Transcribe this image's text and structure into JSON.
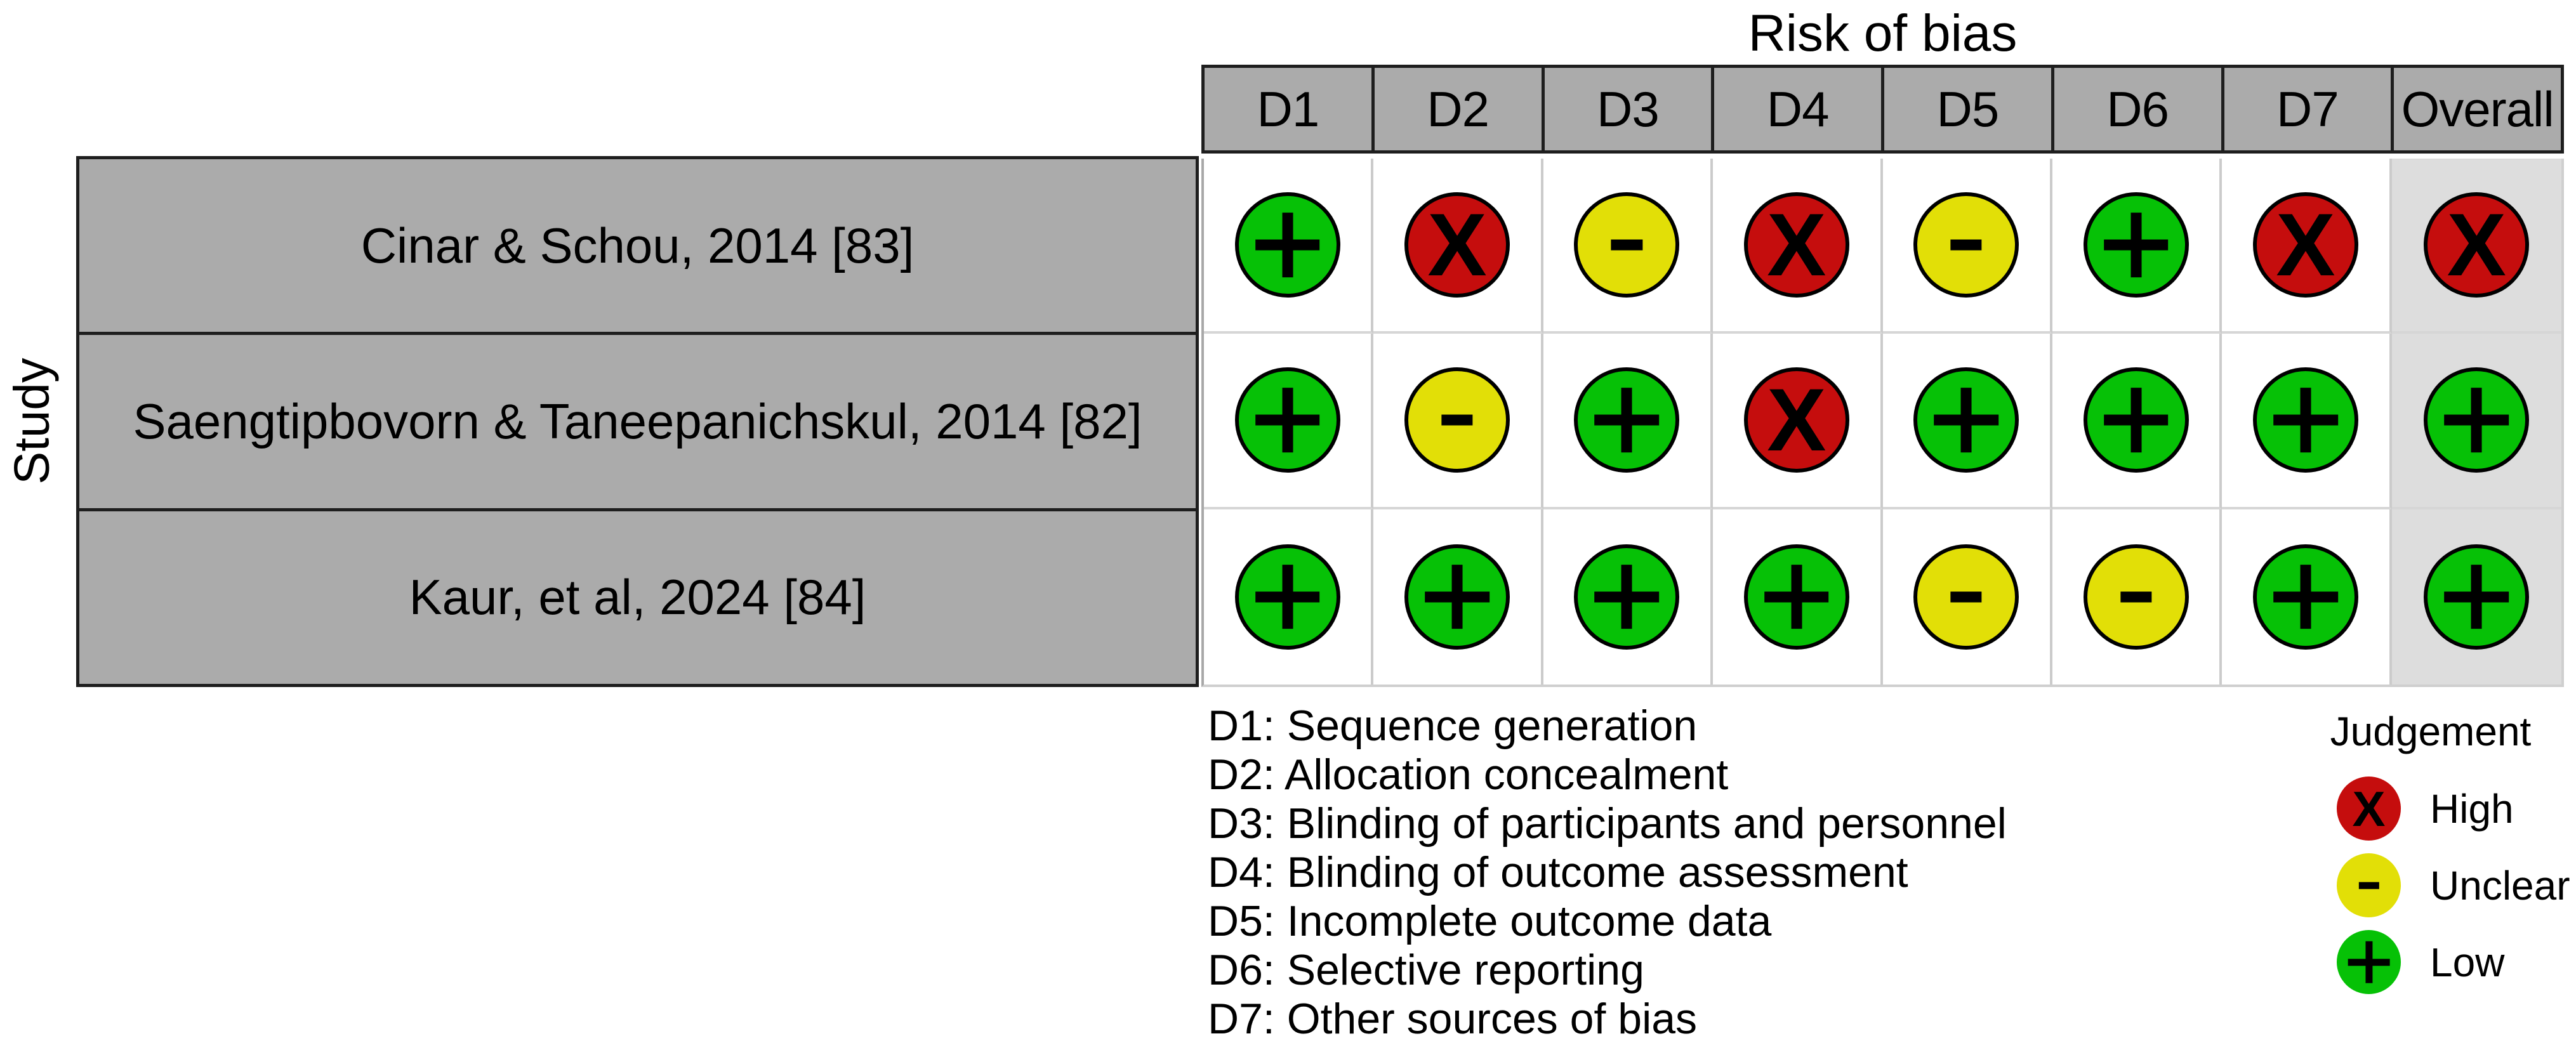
{
  "title": "Risk of bias",
  "y_axis_label": "Study",
  "columns": [
    "D1",
    "D2",
    "D3",
    "D4",
    "D5",
    "D6",
    "D7",
    "Overall"
  ],
  "studies": [
    {
      "label": "Cinar & Schou, 2014 [83]",
      "judgements": [
        "low",
        "high",
        "unclear",
        "high",
        "unclear",
        "low",
        "high",
        "high"
      ]
    },
    {
      "label": "Saengtipbovorn & Taneepanichskul, 2014 [82]",
      "judgements": [
        "low",
        "unclear",
        "low",
        "high",
        "low",
        "low",
        "low",
        "low"
      ]
    },
    {
      "label": "Kaur, et al, 2024 [84]",
      "judgements": [
        "low",
        "low",
        "low",
        "low",
        "unclear",
        "unclear",
        "low",
        "low"
      ]
    }
  ],
  "footnotes": [
    "D1: Sequence generation",
    "D2: Allocation concealment",
    "D3: Blinding of participants and personnel",
    "D4: Blinding of outcome assessment",
    "D5: Incomplete outcome data",
    "D6: Selective reporting",
    "D7: Other sources of bias"
  ],
  "legend": {
    "title": "Judgement",
    "items": [
      {
        "judgement": "high",
        "label": "High"
      },
      {
        "judgement": "unclear",
        "label": "Unclear"
      },
      {
        "judgement": "low",
        "label": "Low"
      }
    ]
  },
  "symbols": {
    "high": "X",
    "unclear": "-",
    "low": "+"
  },
  "colors": {
    "high": "#c50d0d",
    "unclear": "#e2df07",
    "low": "#06c106",
    "header_bg": "#ababab",
    "overall_bg": "#dddddd"
  },
  "chart_data": {
    "type": "table",
    "title": "Risk of bias",
    "x_categories": [
      "D1",
      "D2",
      "D3",
      "D4",
      "D5",
      "D6",
      "D7",
      "Overall"
    ],
    "y_categories": [
      "Cinar & Schou, 2014 [83]",
      "Saengtipbovorn & Taneepanichskul, 2014 [82]",
      "Kaur, et al, 2024 [84]"
    ],
    "values": [
      [
        "Low",
        "High",
        "Unclear",
        "High",
        "Unclear",
        "Low",
        "High",
        "High"
      ],
      [
        "Low",
        "Unclear",
        "Low",
        "High",
        "Low",
        "Low",
        "Low",
        "Low"
      ],
      [
        "Low",
        "Low",
        "Low",
        "Low",
        "Unclear",
        "Unclear",
        "Low",
        "Low"
      ]
    ],
    "x_axis_title": "Risk of bias",
    "y_axis_title": "Study",
    "legend_position": "bottom-right",
    "legend": {
      "High": "red circle with X",
      "Unclear": "yellow circle with -",
      "Low": "green circle with +"
    },
    "footnote_domains": {
      "D1": "Sequence generation",
      "D2": "Allocation concealment",
      "D3": "Blinding of participants and personnel",
      "D4": "Blinding of outcome assessment",
      "D5": "Incomplete outcome data",
      "D6": "Selective reporting",
      "D7": "Other sources of bias"
    }
  }
}
